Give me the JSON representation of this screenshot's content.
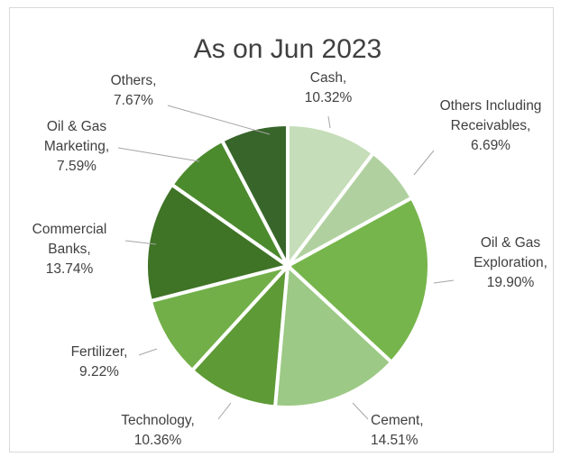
{
  "chart_data": {
    "type": "pie",
    "title": "As on Jun 2023",
    "unit": "%",
    "slices": [
      {
        "label": "Cash,",
        "value": 10.32,
        "value_text": "10.32%",
        "color": "#c5ddb8"
      },
      {
        "label": "Others Including Receivables,",
        "value": 6.69,
        "value_text": "6.69%",
        "color": "#b0d19f"
      },
      {
        "label": "Oil & Gas Exploration,",
        "value": 19.9,
        "value_text": "19.90%",
        "color": "#76b54b"
      },
      {
        "label": "Cement,",
        "value": 14.51,
        "value_text": "14.51%",
        "color": "#9cc985"
      },
      {
        "label": "Technology,",
        "value": 10.36,
        "value_text": "10.36%",
        "color": "#5e9a36"
      },
      {
        "label": "Fertilizer,",
        "value": 9.22,
        "value_text": "9.22%",
        "color": "#72af49"
      },
      {
        "label": "Commercial Banks,",
        "value": 13.74,
        "value_text": "13.74%",
        "color": "#3f7326"
      },
      {
        "label": "Oil & Gas Marketing,",
        "value": 7.59,
        "value_text": "7.59%",
        "color": "#4c8a2e"
      },
      {
        "label": "Others,",
        "value": 7.67,
        "value_text": "7.67%",
        "color": "#37652a"
      }
    ]
  }
}
